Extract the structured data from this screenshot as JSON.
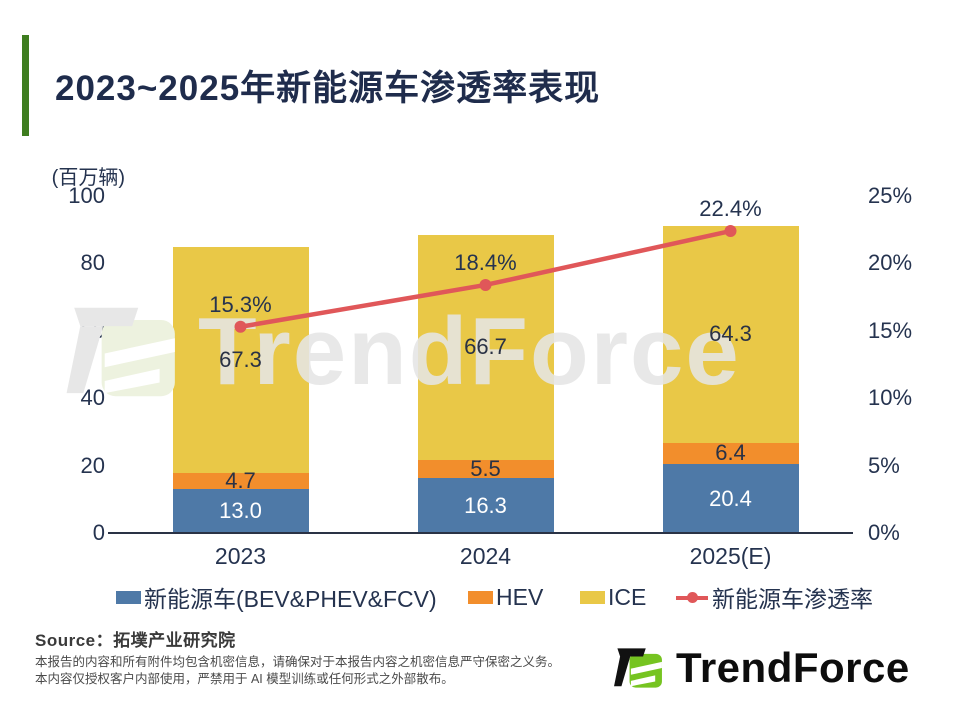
{
  "title": "2023~2025年新能源车渗透率表现",
  "unit_label": "(百万辆)",
  "chart_data": {
    "type": "bar",
    "subtype": "stacked-bar-with-line",
    "categories": [
      "2023",
      "2024",
      "2025(E)"
    ],
    "series": [
      {
        "name": "新能源车(BEV&PHEV&FCV)",
        "color": "#4e79a7",
        "values": [
          13.0,
          16.3,
          20.4
        ],
        "labels": [
          "13.0",
          "16.3",
          "20.4"
        ],
        "label_color": "#ffffff"
      },
      {
        "name": "HEV",
        "color": "#f28e2c",
        "values": [
          4.7,
          5.5,
          6.4
        ],
        "labels": [
          "4.7",
          "5.5",
          "6.4"
        ],
        "label_color": "#2a3245"
      },
      {
        "name": "ICE",
        "color": "#e9c847",
        "values": [
          67.3,
          66.7,
          64.3
        ],
        "labels": [
          "67.3",
          "66.7",
          "64.3"
        ],
        "label_color": "#2a3245"
      }
    ],
    "line_series": {
      "name": "新能源车渗透率",
      "color": "#e05759",
      "values": [
        15.3,
        18.4,
        22.4
      ],
      "labels": [
        "15.3%",
        "18.4%",
        "22.4%"
      ]
    },
    "left_axis": {
      "unit": "(百万辆)",
      "ticks": [
        "0",
        "20",
        "40",
        "60",
        "80",
        "100"
      ],
      "tick_values": [
        0,
        20,
        40,
        60,
        80,
        100
      ],
      "max": 100
    },
    "right_axis": {
      "ticks": [
        "0%",
        "5%",
        "10%",
        "15%",
        "20%",
        "25%"
      ],
      "tick_values": [
        0,
        5,
        10,
        15,
        20,
        25
      ],
      "max": 25
    },
    "grid": false,
    "legend_position": "bottom"
  },
  "watermark_text": "TrendForce",
  "footer": {
    "source": "Source：拓墣产业研究院",
    "disclaimer": [
      "本报告的内容和所有附件均包含机密信息，请确保对于本报告内容之机密信息严守保密之义务。",
      "本内容仅授权客户内部使用，严禁用于 AI 模型训练或任何形式之外部散布。"
    ],
    "logo_text": "TrendForce"
  },
  "colors": {
    "accent_green": "#3e7d1f",
    "logo_green": "#76c421",
    "text_navy": "#25334f",
    "axis_line": "#2a3245"
  }
}
